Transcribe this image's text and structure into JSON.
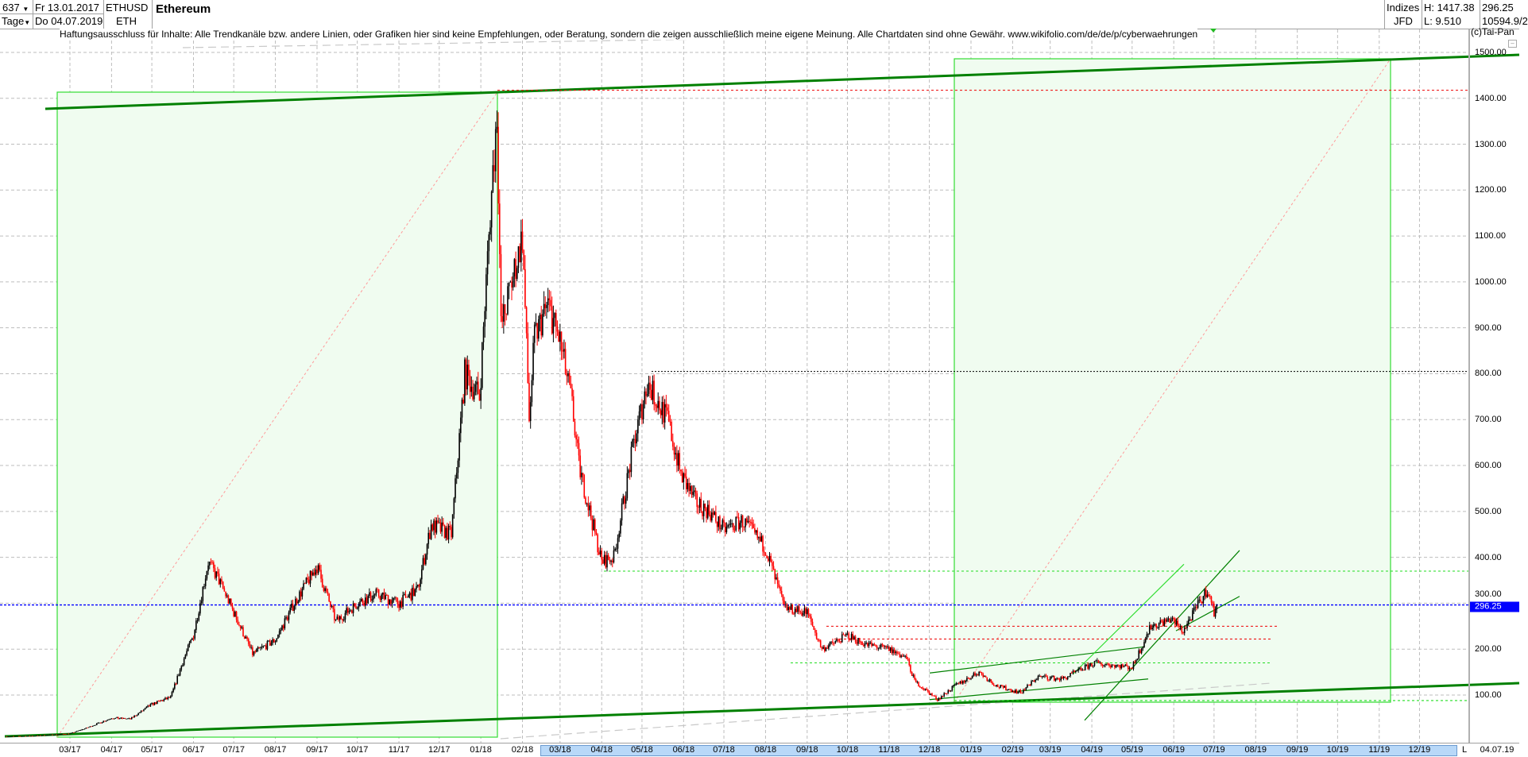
{
  "header": {
    "bars": "637",
    "period": "Tage",
    "date_from": "Fr 13.01.2017",
    "date_to": "Do 04.07.2019",
    "symbol": "ETHUSD",
    "symbol_short": "ETH",
    "title": "Ethereum",
    "group": "Indizes",
    "source": "JFD",
    "high": "H: 1417.38",
    "low": "L: 9.510",
    "last": "296.25",
    "volume": "10594.9/2",
    "copyright": "(c)Tai-Pan"
  },
  "disclaimer": "Haftungsausschluss für Inhalte: Alle Trendkanäle bzw. andere Linien, oder Grafiken hier sind keine Empfehlungen, oder Beratung, sondern die zeigen ausschließlich meine eigene Meinung. Alle Chartdaten sind ohne Gewähr.  www.wikifolio.com/de/de/p/cyberwaehrungen",
  "chart_data": {
    "type": "candlestick",
    "title": "Ethereum",
    "ylim": [
      0,
      1550
    ],
    "y_ticks": [
      "100.00",
      "200.00",
      "300.00",
      "400.00",
      "500.00",
      "600.00",
      "700.00",
      "800.00",
      "900.00",
      "1000.00",
      "1100.00",
      "1200.00",
      "1300.00",
      "1400.00",
      "1500.00"
    ],
    "x_ticks": [
      "03/17",
      "04/17",
      "05/17",
      "06/17",
      "07/17",
      "08/17",
      "09/17",
      "10/17",
      "11/17",
      "12/17",
      "01/18",
      "02/18",
      "03/18",
      "04/18",
      "05/18",
      "06/18",
      "07/18",
      "08/18",
      "09/18",
      "10/18",
      "11/18",
      "12/18",
      "01/19",
      "02/19",
      "03/19",
      "04/19",
      "05/19",
      "06/19",
      "07/19",
      "08/19",
      "09/19",
      "10/19",
      "11/19",
      "12/19"
    ],
    "x_end_label": "04.07.19",
    "x_end_marker": "L",
    "current_price_label": "296.25",
    "grid": true,
    "colors": {
      "up": "#000000",
      "down": "#ff0000",
      "current": "#0000ff",
      "trend": "#008000",
      "box": "#00dd00"
    },
    "close": [
      [
        "2017-01-13",
        10
      ],
      [
        "2017-02-01",
        11
      ],
      [
        "2017-03-01",
        16
      ],
      [
        "2017-03-15",
        30
      ],
      [
        "2017-04-01",
        50
      ],
      [
        "2017-04-15",
        48
      ],
      [
        "2017-05-01",
        80
      ],
      [
        "2017-05-15",
        95
      ],
      [
        "2017-05-25",
        180
      ],
      [
        "2017-06-01",
        230
      ],
      [
        "2017-06-12",
        390
      ],
      [
        "2017-06-20",
        350
      ],
      [
        "2017-07-01",
        280
      ],
      [
        "2017-07-15",
        190
      ],
      [
        "2017-08-01",
        220
      ],
      [
        "2017-08-15",
        300
      ],
      [
        "2017-09-01",
        380
      ],
      [
        "2017-09-15",
        260
      ],
      [
        "2017-10-01",
        300
      ],
      [
        "2017-10-15",
        320
      ],
      [
        "2017-11-01",
        300
      ],
      [
        "2017-11-15",
        330
      ],
      [
        "2017-11-25",
        470
      ],
      [
        "2017-12-10",
        450
      ],
      [
        "2017-12-20",
        800
      ],
      [
        "2017-12-31",
        750
      ],
      [
        "2018-01-08",
        1150
      ],
      [
        "2018-01-13",
        1370
      ],
      [
        "2018-01-16",
        900
      ],
      [
        "2018-02-01",
        1100
      ],
      [
        "2018-02-06",
        700
      ],
      [
        "2018-02-10",
        880
      ],
      [
        "2018-02-20",
        950
      ],
      [
        "2018-03-01",
        870
      ],
      [
        "2018-03-10",
        730
      ],
      [
        "2018-03-15",
        600
      ],
      [
        "2018-04-01",
        390
      ],
      [
        "2018-04-10",
        400
      ],
      [
        "2018-04-25",
        650
      ],
      [
        "2018-05-05",
        780
      ],
      [
        "2018-05-20",
        700
      ],
      [
        "2018-05-30",
        580
      ],
      [
        "2018-06-10",
        520
      ],
      [
        "2018-06-20",
        500
      ],
      [
        "2018-07-01",
        460
      ],
      [
        "2018-07-15",
        480
      ],
      [
        "2018-08-01",
        420
      ],
      [
        "2018-08-15",
        290
      ],
      [
        "2018-09-01",
        280
      ],
      [
        "2018-09-12",
        200
      ],
      [
        "2018-10-01",
        230
      ],
      [
        "2018-10-15",
        210
      ],
      [
        "2018-11-01",
        200
      ],
      [
        "2018-11-14",
        180
      ],
      [
        "2018-11-20",
        130
      ],
      [
        "2018-12-07",
        90
      ],
      [
        "2018-12-20",
        120
      ],
      [
        "2019-01-07",
        150
      ],
      [
        "2019-01-20",
        120
      ],
      [
        "2019-02-07",
        105
      ],
      [
        "2019-02-20",
        140
      ],
      [
        "2019-03-10",
        135
      ],
      [
        "2019-04-03",
        170
      ],
      [
        "2019-04-20",
        165
      ],
      [
        "2019-05-01",
        160
      ],
      [
        "2019-05-15",
        250
      ],
      [
        "2019-05-30",
        265
      ],
      [
        "2019-06-08",
        240
      ],
      [
        "2019-06-20",
        300
      ],
      [
        "2019-06-26",
        330
      ],
      [
        "2019-07-01",
        280
      ],
      [
        "2019-07-04",
        296.25
      ]
    ],
    "levels": [
      1417.38,
      805,
      370,
      296.25,
      250,
      222,
      170,
      88
    ]
  }
}
